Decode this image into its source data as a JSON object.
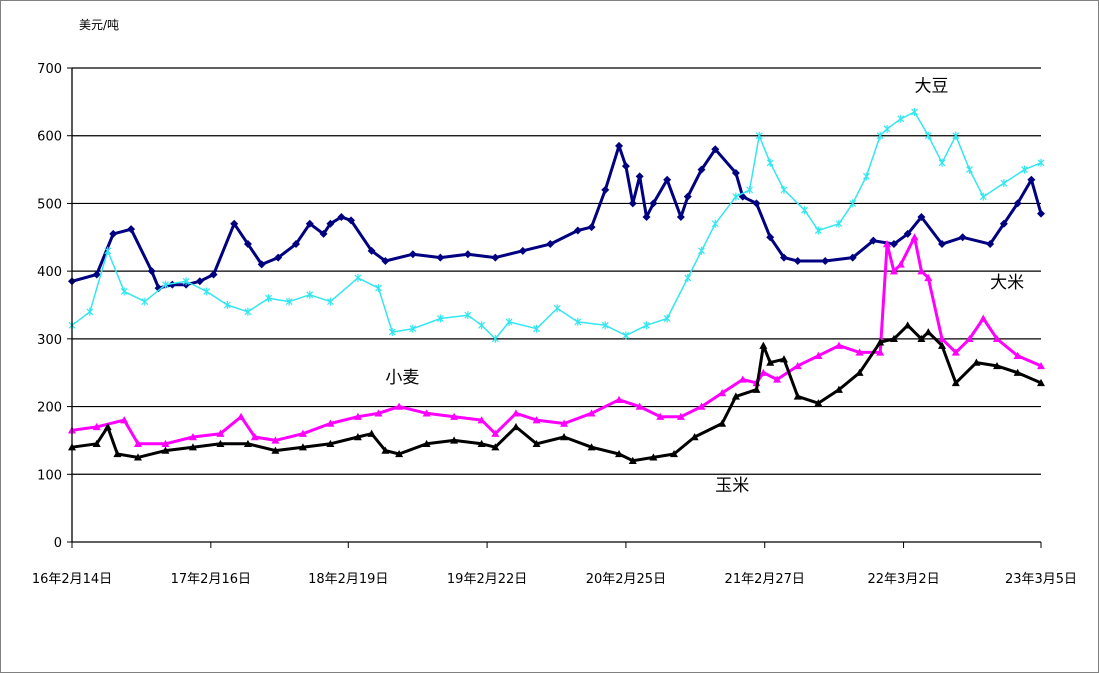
{
  "chart_data": {
    "type": "line",
    "ylabel": "美元/吨",
    "ylim": [
      0,
      700
    ],
    "yticks": [
      0,
      100,
      200,
      300,
      400,
      500,
      600,
      700
    ],
    "grid": true,
    "x_tick_labels": [
      "16年2月14日",
      "17年2月16日",
      "18年2月19日",
      "19年2月22日",
      "20年2月25日",
      "21年2月27日",
      "22年3月2日",
      "23年3月5日"
    ],
    "x_tick_years": [
      2016.12,
      2017.13,
      2018.13,
      2019.14,
      2020.15,
      2021.16,
      2022.17,
      2023.17
    ],
    "x_range": [
      2016.12,
      2023.17
    ],
    "series": [
      {
        "name": "大豆",
        "color": "#000080",
        "marker": "diamond",
        "x": [
          2016.12,
          2016.3,
          2016.42,
          2016.55,
          2016.7,
          2016.75,
          2016.85,
          2016.95,
          2017.05,
          2017.15,
          2017.3,
          2017.4,
          2017.5,
          2017.62,
          2017.75,
          2017.85,
          2017.95,
          2018.0,
          2018.08,
          2018.15,
          2018.3,
          2018.4,
          2018.6,
          2018.8,
          2019.0,
          2019.2,
          2019.4,
          2019.6,
          2019.8,
          2019.9,
          2020.0,
          2020.1,
          2020.15,
          2020.2,
          2020.25,
          2020.3,
          2020.35,
          2020.45,
          2020.55,
          2020.6,
          2020.7,
          2020.8,
          2020.95,
          2021.0,
          2021.1,
          2021.2,
          2021.3,
          2021.4,
          2021.6,
          2021.8,
          2021.95,
          2022.1,
          2022.2,
          2022.3,
          2022.45,
          2022.6,
          2022.8,
          2022.9,
          2023.0,
          2023.1,
          2023.17
        ],
        "y": [
          385,
          395,
          455,
          462,
          400,
          375,
          380,
          380,
          385,
          395,
          470,
          440,
          410,
          420,
          440,
          470,
          455,
          470,
          480,
          475,
          430,
          415,
          425,
          420,
          425,
          420,
          430,
          440,
          460,
          465,
          520,
          585,
          555,
          500,
          540,
          480,
          500,
          535,
          480,
          510,
          550,
          580,
          545,
          510,
          500,
          450,
          420,
          415,
          415,
          420,
          445,
          440,
          455,
          480,
          440,
          450,
          440,
          470,
          500,
          535,
          485
        ]
      },
      {
        "name": "",
        "color": "#33e6f0",
        "marker": "star",
        "x": [
          2016.12,
          2016.25,
          2016.38,
          2016.5,
          2016.65,
          2016.8,
          2016.95,
          2017.1,
          2017.25,
          2017.4,
          2017.55,
          2017.7,
          2017.85,
          2018.0,
          2018.2,
          2018.35,
          2018.45,
          2018.6,
          2018.8,
          2019.0,
          2019.1,
          2019.2,
          2019.3,
          2019.5,
          2019.65,
          2019.8,
          2020.0,
          2020.15,
          2020.3,
          2020.45,
          2020.6,
          2020.7,
          2020.8,
          2020.95,
          2021.05,
          2021.12,
          2021.2,
          2021.3,
          2021.45,
          2021.55,
          2021.7,
          2021.8,
          2021.9,
          2022.0,
          2022.05,
          2022.15,
          2022.25,
          2022.35,
          2022.45,
          2022.55,
          2022.65,
          2022.75,
          2022.9,
          2023.05,
          2023.17
        ],
        "y": [
          320,
          340,
          430,
          370,
          355,
          380,
          385,
          370,
          350,
          340,
          360,
          355,
          365,
          355,
          390,
          375,
          310,
          315,
          330,
          335,
          320,
          300,
          325,
          315,
          345,
          325,
          320,
          305,
          320,
          330,
          390,
          430,
          470,
          510,
          520,
          600,
          560,
          520,
          490,
          460,
          470,
          500,
          540,
          600,
          610,
          625,
          635,
          600,
          560,
          600,
          550,
          510,
          530,
          550,
          560
        ]
      },
      {
        "name": "小麦",
        "color": "#ff00ff",
        "marker": "triangle",
        "x": [
          2016.12,
          2016.3,
          2016.5,
          2016.6,
          2016.8,
          2017.0,
          2017.2,
          2017.35,
          2017.45,
          2017.6,
          2017.8,
          2018.0,
          2018.2,
          2018.35,
          2018.5,
          2018.7,
          2018.9,
          2019.1,
          2019.2,
          2019.35,
          2019.5,
          2019.7,
          2019.9,
          2020.1,
          2020.25,
          2020.4,
          2020.55,
          2020.7,
          2020.85,
          2021.0,
          2021.1,
          2021.15,
          2021.25,
          2021.4,
          2021.55,
          2021.7,
          2021.85,
          2022.0,
          2022.05,
          2022.1,
          2022.15,
          2022.25,
          2022.3,
          2022.35,
          2022.45,
          2022.55,
          2022.65,
          2022.75,
          2022.85,
          2023.0,
          2023.17
        ],
        "y": [
          165,
          170,
          180,
          145,
          145,
          155,
          160,
          185,
          155,
          150,
          160,
          175,
          185,
          190,
          200,
          190,
          185,
          180,
          160,
          190,
          180,
          175,
          190,
          210,
          200,
          185,
          185,
          200,
          220,
          240,
          235,
          250,
          240,
          260,
          275,
          290,
          280,
          280,
          440,
          400,
          410,
          450,
          400,
          390,
          300,
          280,
          300,
          330,
          300,
          275,
          260
        ]
      },
      {
        "name": "玉米",
        "color": "#000000",
        "marker": "triangle",
        "x": [
          2016.12,
          2016.3,
          2016.38,
          2016.45,
          2016.6,
          2016.8,
          2017.0,
          2017.2,
          2017.4,
          2017.6,
          2017.8,
          2018.0,
          2018.2,
          2018.3,
          2018.4,
          2018.5,
          2018.7,
          2018.9,
          2019.1,
          2019.2,
          2019.35,
          2019.5,
          2019.7,
          2019.9,
          2020.1,
          2020.2,
          2020.35,
          2020.5,
          2020.65,
          2020.85,
          2020.95,
          2021.1,
          2021.15,
          2021.2,
          2021.3,
          2021.4,
          2021.55,
          2021.7,
          2021.85,
          2022.0,
          2022.1,
          2022.2,
          2022.3,
          2022.35,
          2022.45,
          2022.55,
          2022.7,
          2022.85,
          2023.0,
          2023.17
        ],
        "y": [
          140,
          145,
          170,
          130,
          125,
          135,
          140,
          145,
          145,
          135,
          140,
          145,
          155,
          160,
          135,
          130,
          145,
          150,
          145,
          140,
          170,
          145,
          155,
          140,
          130,
          120,
          125,
          130,
          155,
          175,
          215,
          225,
          290,
          265,
          270,
          215,
          205,
          225,
          250,
          295,
          300,
          320,
          300,
          310,
          290,
          235,
          265,
          260,
          250,
          235
        ]
      }
    ],
    "annotations": [
      {
        "text": "大豆",
        "series": "大豆",
        "x": 2022.25,
        "y": 665
      },
      {
        "text": "大米",
        "series": "大米",
        "x": 2022.8,
        "y": 375
      },
      {
        "text": "小麦",
        "series": "小麦",
        "x": 2018.4,
        "y": 235
      },
      {
        "text": "玉米",
        "series": "玉米",
        "x": 2020.8,
        "y": 75
      }
    ]
  }
}
